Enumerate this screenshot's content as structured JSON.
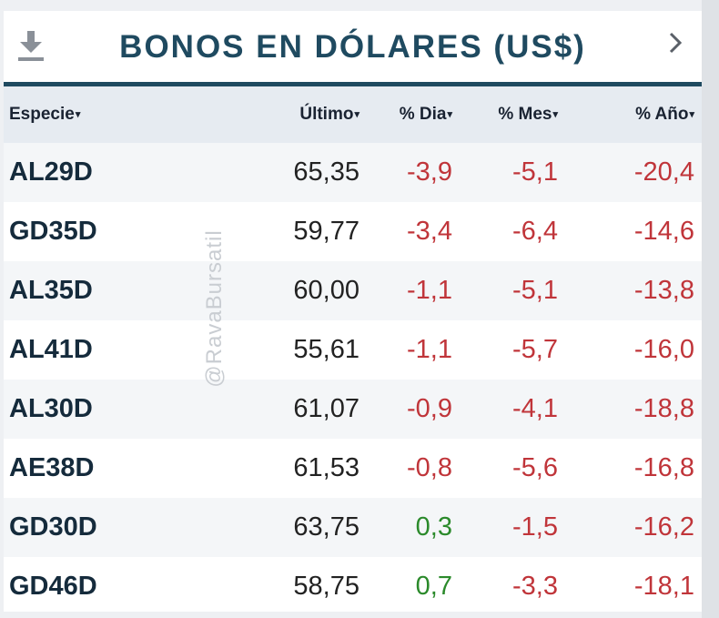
{
  "header": {
    "title": "BONOS EN DÓLARES (US$)"
  },
  "columns": {
    "especie": "Especie",
    "ultimo": "Último",
    "dia": "% Dia",
    "mes": "% Mes",
    "ano": "% Año",
    "sort_arrow": "▾"
  },
  "watermark": "@RavaBursatil",
  "rows": [
    {
      "especie": "AL29D",
      "ultimo": "65,35",
      "dia": "-3,9",
      "mes": "-5,1",
      "ano": "-20,4"
    },
    {
      "especie": "GD35D",
      "ultimo": "59,77",
      "dia": "-3,4",
      "mes": "-6,4",
      "ano": "-14,6"
    },
    {
      "especie": "AL35D",
      "ultimo": "60,00",
      "dia": "-1,1",
      "mes": "-5,1",
      "ano": "-13,8"
    },
    {
      "especie": "AL41D",
      "ultimo": "55,61",
      "dia": "-1,1",
      "mes": "-5,7",
      "ano": "-16,0"
    },
    {
      "especie": "AL30D",
      "ultimo": "61,07",
      "dia": "-0,9",
      "mes": "-4,1",
      "ano": "-18,8"
    },
    {
      "especie": "AE38D",
      "ultimo": "61,53",
      "dia": "-0,8",
      "mes": "-5,6",
      "ano": "-16,8"
    },
    {
      "especie": "GD30D",
      "ultimo": "63,75",
      "dia": "0,3",
      "mes": "-1,5",
      "ano": "-16,2"
    },
    {
      "especie": "GD46D",
      "ultimo": "58,75",
      "dia": "0,7",
      "mes": "-3,3",
      "ano": "-18,1"
    }
  ],
  "colors": {
    "title": "#1f4a60",
    "negative": "#c0353a",
    "positive": "#2b8a2b"
  },
  "icons": {
    "download": "download-icon",
    "next": "chevron-right-icon"
  }
}
